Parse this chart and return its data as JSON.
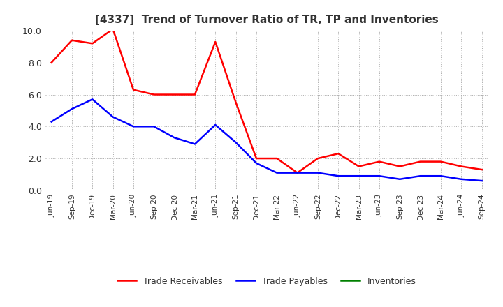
{
  "title": "[4337]  Trend of Turnover Ratio of TR, TP and Inventories",
  "x_labels": [
    "Jun-19",
    "Sep-19",
    "Dec-19",
    "Mar-20",
    "Jun-20",
    "Sep-20",
    "Dec-20",
    "Mar-21",
    "Jun-21",
    "Sep-21",
    "Dec-21",
    "Mar-22",
    "Jun-22",
    "Sep-22",
    "Dec-22",
    "Mar-23",
    "Jun-23",
    "Sep-23",
    "Dec-23",
    "Mar-24",
    "Jun-24",
    "Sep-24"
  ],
  "trade_receivables": [
    8.0,
    9.4,
    9.2,
    10.1,
    6.3,
    6.0,
    6.0,
    6.0,
    9.3,
    5.5,
    2.0,
    2.0,
    1.1,
    2.0,
    2.3,
    1.5,
    1.8,
    1.5,
    1.8,
    1.8,
    1.5,
    1.3
  ],
  "trade_payables": [
    4.3,
    5.1,
    5.7,
    4.6,
    4.0,
    4.0,
    3.3,
    2.9,
    4.1,
    3.0,
    1.7,
    1.1,
    1.1,
    1.1,
    0.9,
    0.9,
    0.9,
    0.7,
    0.9,
    0.9,
    0.7,
    0.6
  ],
  "inventories": [
    0.0,
    0.0,
    0.0,
    0.0,
    0.0,
    0.0,
    0.0,
    0.0,
    0.0,
    0.0,
    0.0,
    0.0,
    0.0,
    0.0,
    0.0,
    0.0,
    0.0,
    0.0,
    0.0,
    0.0,
    0.0,
    0.0
  ],
  "tr_color": "#ff0000",
  "tp_color": "#0000ff",
  "inv_color": "#008000",
  "ylim": [
    0.0,
    10.0
  ],
  "yticks": [
    0.0,
    2.0,
    4.0,
    6.0,
    8.0,
    10.0
  ],
  "ytick_labels": [
    "0.0",
    "2.0",
    "4.0",
    "6.0",
    "8.0",
    "10.0"
  ],
  "background_color": "#ffffff",
  "grid_color": "#aaaaaa",
  "title_color": "#333333",
  "legend_labels": [
    "Trade Receivables",
    "Trade Payables",
    "Inventories"
  ]
}
